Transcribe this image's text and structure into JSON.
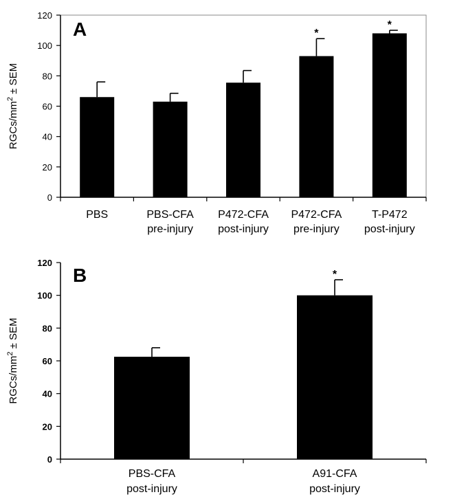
{
  "chart_data": [
    {
      "type": "bar",
      "panel_label": "A",
      "ylabel_base": "RGCs/mm",
      "ylabel_sup": "2",
      "ylabel_tail": " ± SEM",
      "ylim": [
        0,
        120
      ],
      "yticks": [
        0,
        20,
        40,
        60,
        80,
        100,
        120
      ],
      "grid": false,
      "categories": [
        [
          "PBS"
        ],
        [
          "PBS-CFA",
          "pre-injury"
        ],
        [
          "P472-CFA",
          "post-injury"
        ],
        [
          "P472-CFA",
          "pre-injury"
        ],
        [
          "T-P472",
          "post-injury"
        ]
      ],
      "values": [
        66,
        63,
        75.5,
        93,
        108
      ],
      "errors": [
        10,
        5.5,
        8,
        11.5,
        2
      ],
      "annotations": [
        "",
        "",
        "",
        "*",
        "*"
      ],
      "colors": {
        "bar": "#000000",
        "axis": "#000000"
      }
    },
    {
      "type": "bar",
      "panel_label": "B",
      "ylabel_base": "RGCs/mm",
      "ylabel_sup": "2",
      "ylabel_tail": " ± SEM",
      "ylim": [
        0,
        120
      ],
      "yticks": [
        0,
        20,
        40,
        60,
        80,
        100,
        120
      ],
      "grid": false,
      "categories": [
        [
          "PBS-CFA",
          "post-injury"
        ],
        [
          "A91-CFA",
          "post-injury"
        ]
      ],
      "values": [
        62.5,
        100
      ],
      "errors": [
        5.5,
        9.5
      ],
      "annotations": [
        "",
        "*"
      ],
      "colors": {
        "bar": "#000000",
        "axis": "#000000"
      }
    }
  ]
}
